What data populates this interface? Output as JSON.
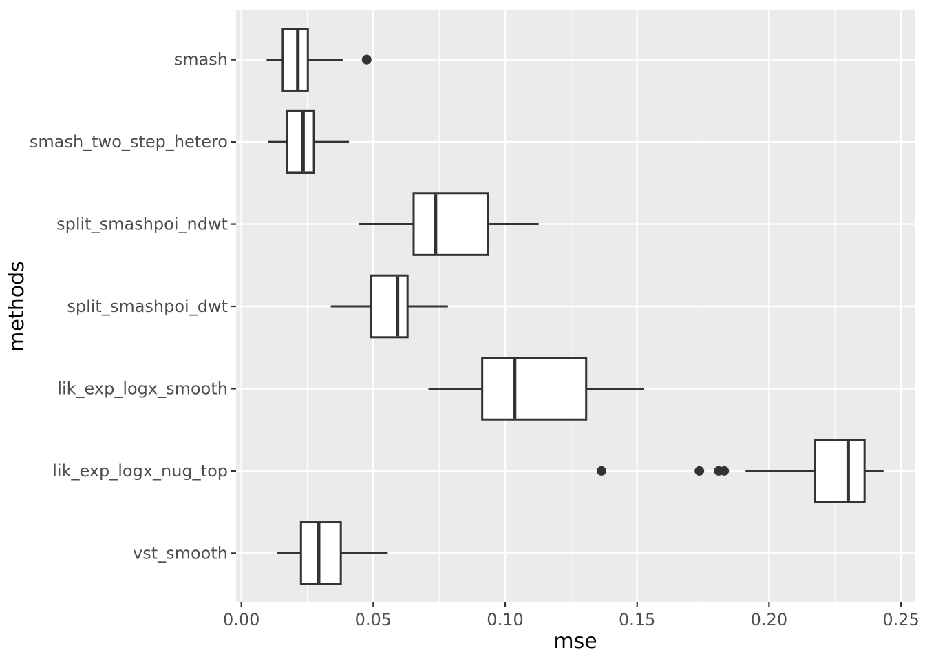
{
  "chart_data": {
    "type": "boxplot",
    "orientation": "horizontal",
    "title": "",
    "xlabel": "mse",
    "ylabel": "methods",
    "xlim": [
      -0.002,
      0.2552
    ],
    "grid": true,
    "legend": false,
    "x_major_ticks": [
      0.0,
      0.05,
      0.1,
      0.15,
      0.2,
      0.25
    ],
    "x_tick_labels": [
      "0.00",
      "0.05",
      "0.10",
      "0.15",
      "0.20",
      "0.25"
    ],
    "x_minor_ticks": [
      0.025,
      0.075,
      0.125,
      0.175,
      0.225
    ],
    "categories": [
      "smash",
      "smash_two_step_hetero",
      "split_smashpoi_ndwt",
      "split_smashpoi_dwt",
      "lik_exp_logx_smooth",
      "lik_exp_logx_nug_top",
      "vst_smooth"
    ],
    "series": [
      {
        "name": "smash",
        "whisker_low": 0.0096,
        "q1": 0.0157,
        "median": 0.0214,
        "q3": 0.0252,
        "whisker_high": 0.0384,
        "outliers": [
          0.0475
        ]
      },
      {
        "name": "smash_two_step_hetero",
        "whisker_low": 0.0102,
        "q1": 0.0173,
        "median": 0.0234,
        "q3": 0.0275,
        "whisker_high": 0.0408,
        "outliers": []
      },
      {
        "name": "split_smashpoi_ndwt",
        "whisker_low": 0.0445,
        "q1": 0.0653,
        "median": 0.0736,
        "q3": 0.0934,
        "whisker_high": 0.1127,
        "outliers": []
      },
      {
        "name": "split_smashpoi_dwt",
        "whisker_low": 0.0339,
        "q1": 0.049,
        "median": 0.0592,
        "q3": 0.063,
        "whisker_high": 0.0783,
        "outliers": []
      },
      {
        "name": "lik_exp_logx_smooth",
        "whisker_low": 0.0709,
        "q1": 0.0913,
        "median": 0.1036,
        "q3": 0.1307,
        "whisker_high": 0.1526,
        "outliers": []
      },
      {
        "name": "lik_exp_logx_nug_top",
        "whisker_low": 0.1911,
        "q1": 0.2173,
        "median": 0.23,
        "q3": 0.2362,
        "whisker_high": 0.2434,
        "outliers": [
          0.1365,
          0.1736,
          0.1809,
          0.183
        ]
      },
      {
        "name": "vst_smooth",
        "whisker_low": 0.0135,
        "q1": 0.0226,
        "median": 0.0293,
        "q3": 0.0377,
        "whisker_high": 0.0555,
        "outliers": []
      }
    ],
    "colors": {
      "panel_bg": "#EBEBEB",
      "grid": "#FFFFFF",
      "box_stroke": "#333333",
      "box_fill": "#FFFFFF",
      "tick": "#333333",
      "tick_label": "#4D4D4D",
      "axis_title": "#000000"
    }
  }
}
